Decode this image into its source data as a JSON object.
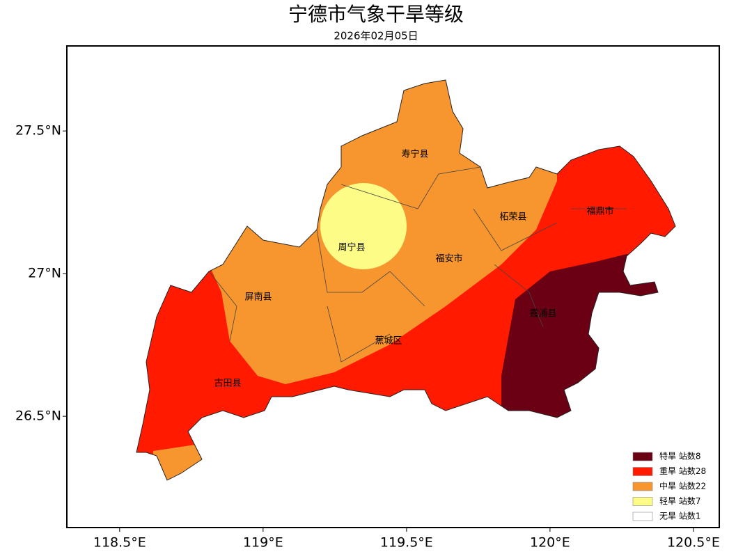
{
  "title": "宁德市气象干旱等级",
  "subtitle": "2026年02月05日",
  "axes": {
    "xlim": [
      118.316,
      120.59
    ],
    "ylim": [
      26.11,
      27.798
    ],
    "xticks": [
      {
        "value": 118.5,
        "label": "118.5°E"
      },
      {
        "value": 119,
        "label": "119°E"
      },
      {
        "value": 119.5,
        "label": "119.5°E"
      },
      {
        "value": 120,
        "label": "120°E"
      },
      {
        "value": 120.5,
        "label": "120.5°E"
      }
    ],
    "yticks": [
      {
        "value": 26.5,
        "label": "26.5°N"
      },
      {
        "value": 27,
        "label": "27°N"
      },
      {
        "value": 27.5,
        "label": "27.5°N"
      }
    ]
  },
  "regions": [
    "寿宁县",
    "周宁县",
    "福安市",
    "柘荣县",
    "福鼎市",
    "屏南县",
    "霞浦县",
    "蕉城区",
    "古田县"
  ],
  "legend": [
    {
      "label": "特旱  站数8",
      "color": "#6b0015"
    },
    {
      "label": "重旱  站数28",
      "color": "#ff1a00"
    },
    {
      "label": "中旱  站数22",
      "color": "#f7962f"
    },
    {
      "label": "轻旱  站数7",
      "color": "#fcfc86"
    },
    {
      "label": "无旱  站数1",
      "color": "#ffffff"
    }
  ]
}
